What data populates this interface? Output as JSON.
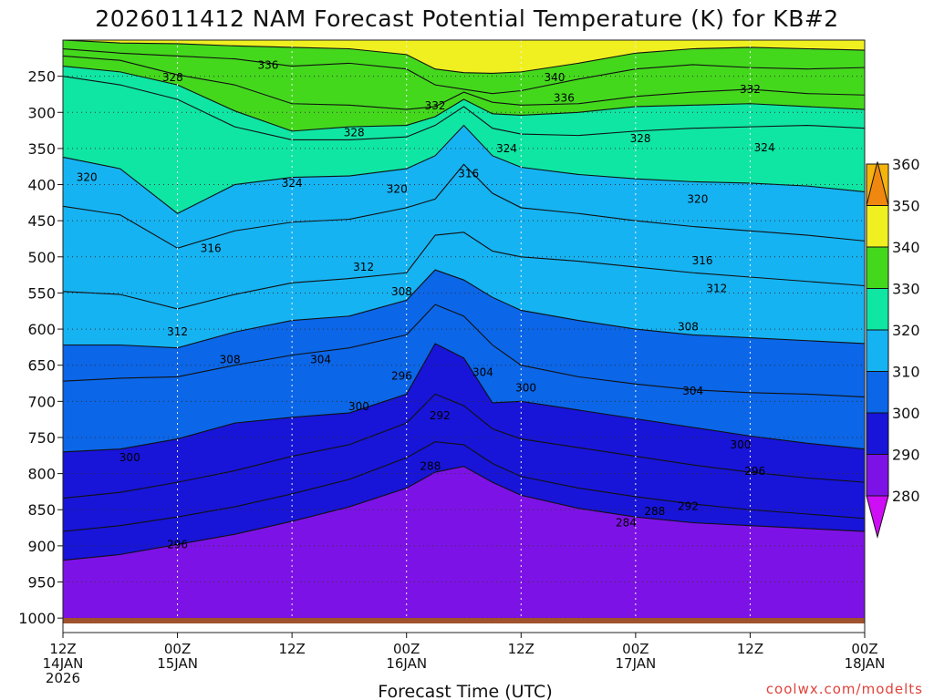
{
  "chart_data": {
    "type": "contour",
    "title": "2026011412 NAM Forecast Potential Temperature (K) for KB#2",
    "xlabel": "Forecast Time (UTC)",
    "ylabel": "",
    "credit": "coolwx.com/modelts",
    "pressure_range_hPa": [
      200,
      1020
    ],
    "y_ticks": [
      250,
      300,
      350,
      400,
      450,
      500,
      550,
      600,
      650,
      700,
      750,
      800,
      850,
      900,
      950,
      1000
    ],
    "x_ticks": [
      {
        "hours": 0,
        "lines": [
          "12Z",
          "14JAN",
          "2026"
        ]
      },
      {
        "hours": 12,
        "lines": [
          "00Z",
          "15JAN"
        ]
      },
      {
        "hours": 24,
        "lines": [
          "12Z"
        ]
      },
      {
        "hours": 36,
        "lines": [
          "00Z",
          "16JAN"
        ]
      },
      {
        "hours": 48,
        "lines": [
          "12Z"
        ]
      },
      {
        "hours": 60,
        "lines": [
          "00Z",
          "17JAN"
        ]
      },
      {
        "hours": 72,
        "lines": [
          "12Z"
        ]
      },
      {
        "hours": 84,
        "lines": [
          "00Z",
          "18JAN"
        ]
      }
    ],
    "colorbar": {
      "levels": [
        280,
        290,
        300,
        310,
        320,
        330,
        340,
        350,
        360
      ],
      "colors": [
        "#ce0ef5",
        "#7d12e6",
        "#1814d8",
        "#0b66e8",
        "#16b3f2",
        "#0fe6a4",
        "#44d81d",
        "#f0f020",
        "#f4b40c",
        "#f08810"
      ]
    },
    "series": [
      {
        "level": 340,
        "x": [
          0,
          6,
          12,
          18,
          24,
          30,
          36,
          39,
          42,
          45,
          48,
          54,
          60,
          66,
          72,
          78,
          84
        ],
        "p": [
          200,
          204,
          205,
          208,
          210,
          212,
          220,
          240,
          245,
          246,
          244,
          232,
          218,
          212,
          210,
          212,
          214
        ]
      },
      {
        "level": 336,
        "x": [
          0,
          6,
          12,
          18,
          24,
          30,
          36,
          39,
          42,
          45,
          48,
          54,
          60,
          66,
          72,
          78,
          84
        ],
        "p": [
          212,
          218,
          222,
          226,
          236,
          232,
          240,
          262,
          268,
          274,
          270,
          254,
          240,
          234,
          238,
          240,
          238
        ]
      },
      {
        "level": 332,
        "x": [
          0,
          6,
          12,
          18,
          24,
          30,
          36,
          39,
          42,
          45,
          48,
          54,
          60,
          66,
          72,
          78,
          84
        ],
        "p": [
          222,
          228,
          248,
          262,
          288,
          290,
          296,
          292,
          272,
          286,
          290,
          288,
          278,
          272,
          268,
          274,
          276
        ]
      },
      {
        "level": 328,
        "x": [
          0,
          6,
          12,
          18,
          24,
          30,
          36,
          39,
          42,
          45,
          48,
          54,
          60,
          66,
          72,
          78,
          84
        ],
        "p": [
          236,
          244,
          262,
          298,
          326,
          320,
          318,
          306,
          282,
          302,
          304,
          300,
          292,
          290,
          288,
          292,
          296
        ]
      },
      {
        "level": 324,
        "x": [
          0,
          6,
          12,
          18,
          24,
          30,
          36,
          39,
          42,
          45,
          48,
          54,
          60,
          66,
          72,
          78,
          84
        ],
        "p": [
          250,
          262,
          282,
          320,
          338,
          338,
          334,
          318,
          292,
          322,
          330,
          332,
          326,
          322,
          320,
          318,
          322
        ]
      },
      {
        "level": 320,
        "x": [
          0,
          6,
          12,
          18,
          24,
          30,
          36,
          39,
          42,
          45,
          48,
          54,
          60,
          66,
          72,
          78,
          84
        ],
        "p": [
          362,
          378,
          440,
          400,
          390,
          388,
          378,
          360,
          318,
          360,
          376,
          386,
          392,
          396,
          398,
          402,
          410
        ]
      },
      {
        "level": 316,
        "x": [
          0,
          6,
          12,
          18,
          24,
          30,
          36,
          39,
          42,
          45,
          48,
          54,
          60,
          66,
          72,
          78,
          84
        ],
        "p": [
          430,
          442,
          488,
          464,
          452,
          448,
          432,
          420,
          372,
          412,
          432,
          440,
          450,
          458,
          464,
          470,
          478
        ]
      },
      {
        "level": 312,
        "x": [
          0,
          6,
          12,
          18,
          24,
          30,
          36,
          39,
          42,
          45,
          48,
          54,
          60,
          66,
          72,
          78,
          84
        ],
        "p": [
          548,
          552,
          572,
          552,
          536,
          530,
          522,
          470,
          466,
          492,
          500,
          506,
          514,
          522,
          528,
          534,
          540
        ]
      },
      {
        "level": 308,
        "x": [
          0,
          6,
          12,
          18,
          24,
          30,
          36,
          39,
          42,
          45,
          48,
          54,
          60,
          66,
          72,
          78,
          84
        ],
        "p": [
          622,
          622,
          626,
          604,
          588,
          582,
          560,
          518,
          532,
          556,
          574,
          588,
          600,
          608,
          612,
          616,
          620
        ]
      },
      {
        "level": 304,
        "x": [
          0,
          6,
          12,
          18,
          24,
          30,
          36,
          39,
          42,
          45,
          48,
          54,
          60,
          66,
          72,
          78,
          84
        ],
        "p": [
          672,
          668,
          666,
          650,
          636,
          626,
          608,
          566,
          582,
          622,
          650,
          666,
          676,
          684,
          688,
          690,
          694
        ]
      },
      {
        "level": 300,
        "x": [
          0,
          6,
          12,
          18,
          24,
          30,
          36,
          39,
          42,
          45,
          48,
          54,
          60,
          66,
          72,
          78,
          84
        ],
        "p": [
          770,
          766,
          752,
          730,
          722,
          716,
          690,
          620,
          640,
          702,
          700,
          712,
          724,
          736,
          748,
          758,
          766
        ]
      },
      {
        "level": 296,
        "x": [
          0,
          6,
          12,
          18,
          24,
          30,
          36,
          39,
          42,
          45,
          48,
          54,
          60,
          66,
          72,
          78,
          84
        ],
        "p": [
          834,
          826,
          812,
          796,
          776,
          760,
          730,
          690,
          706,
          738,
          752,
          764,
          776,
          788,
          798,
          806,
          812
        ]
      },
      {
        "level": 292,
        "x": [
          0,
          6,
          12,
          18,
          24,
          30,
          36,
          39,
          42,
          45,
          48,
          54,
          60,
          66,
          72,
          78,
          84
        ],
        "p": [
          880,
          872,
          860,
          846,
          828,
          808,
          778,
          756,
          760,
          786,
          804,
          820,
          832,
          842,
          850,
          856,
          862
        ]
      },
      {
        "level": 288,
        "x": [
          0,
          6,
          12,
          18,
          24,
          30,
          36,
          39,
          42,
          45,
          48,
          54,
          60,
          66,
          72,
          78,
          84
        ],
        "p": [
          920,
          912,
          898,
          884,
          866,
          846,
          820,
          798,
          790,
          812,
          830,
          848,
          860,
          868,
          872,
          876,
          880
        ]
      }
    ],
    "contour_labels": [
      {
        "text": "336",
        "x": 21.5,
        "p": 235
      },
      {
        "text": "328",
        "x": 11.5,
        "p": 252
      },
      {
        "text": "340",
        "x": 51.5,
        "p": 252
      },
      {
        "text": "336",
        "x": 52.5,
        "p": 280
      },
      {
        "text": "332",
        "x": 72.0,
        "p": 268
      },
      {
        "text": "332",
        "x": 39.0,
        "p": 291
      },
      {
        "text": "328",
        "x": 30.5,
        "p": 328
      },
      {
        "text": "324",
        "x": 46.5,
        "p": 350
      },
      {
        "text": "328",
        "x": 60.5,
        "p": 336
      },
      {
        "text": "324",
        "x": 73.5,
        "p": 349
      },
      {
        "text": "320",
        "x": 2.5,
        "p": 390
      },
      {
        "text": "324",
        "x": 24.0,
        "p": 398
      },
      {
        "text": "320",
        "x": 35.0,
        "p": 406
      },
      {
        "text": "316",
        "x": 42.5,
        "p": 385
      },
      {
        "text": "320",
        "x": 66.5,
        "p": 420
      },
      {
        "text": "316",
        "x": 15.5,
        "p": 488
      },
      {
        "text": "316",
        "x": 67.0,
        "p": 505
      },
      {
        "text": "312",
        "x": 31.5,
        "p": 514
      },
      {
        "text": "312",
        "x": 68.5,
        "p": 544
      },
      {
        "text": "308",
        "x": 35.5,
        "p": 548
      },
      {
        "text": "312",
        "x": 12.0,
        "p": 604
      },
      {
        "text": "308",
        "x": 65.5,
        "p": 597
      },
      {
        "text": "308",
        "x": 17.5,
        "p": 642
      },
      {
        "text": "304",
        "x": 27.0,
        "p": 642
      },
      {
        "text": "304",
        "x": 44.0,
        "p": 660
      },
      {
        "text": "300",
        "x": 48.5,
        "p": 681
      },
      {
        "text": "304",
        "x": 66.0,
        "p": 686
      },
      {
        "text": "296",
        "x": 35.5,
        "p": 665
      },
      {
        "text": "300",
        "x": 31.0,
        "p": 707
      },
      {
        "text": "292",
        "x": 39.5,
        "p": 720
      },
      {
        "text": "300",
        "x": 7.0,
        "p": 778
      },
      {
        "text": "300",
        "x": 71.0,
        "p": 760
      },
      {
        "text": "296",
        "x": 72.5,
        "p": 797
      },
      {
        "text": "288",
        "x": 38.5,
        "p": 790
      },
      {
        "text": "292",
        "x": 65.5,
        "p": 845
      },
      {
        "text": "288",
        "x": 62.0,
        "p": 852
      },
      {
        "text": "284",
        "x": 59.0,
        "p": 868
      },
      {
        "text": "296",
        "x": 12.0,
        "p": 898
      }
    ],
    "grid": "dotted",
    "legend": "colorbar-right"
  }
}
